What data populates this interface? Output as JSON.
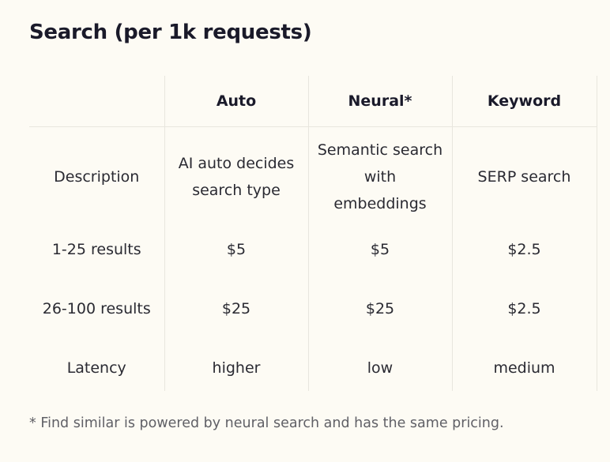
{
  "title": "Search (per 1k requests)",
  "table": {
    "headers": [
      "",
      "Auto",
      "Neural*",
      "Keyword"
    ],
    "rows": [
      {
        "label": "Description",
        "cells": [
          "AI auto decides search type",
          "Semantic search with embeddings",
          "SERP search"
        ]
      },
      {
        "label": "1-25 results",
        "cells": [
          "$5",
          "$5",
          "$2.5"
        ]
      },
      {
        "label": "26-100 results",
        "cells": [
          "$25",
          "$25",
          "$2.5"
        ]
      },
      {
        "label": "Latency",
        "cells": [
          "higher",
          "low",
          "medium"
        ]
      }
    ]
  },
  "footnote": "* Find similar is powered by neural search and has the same pricing."
}
